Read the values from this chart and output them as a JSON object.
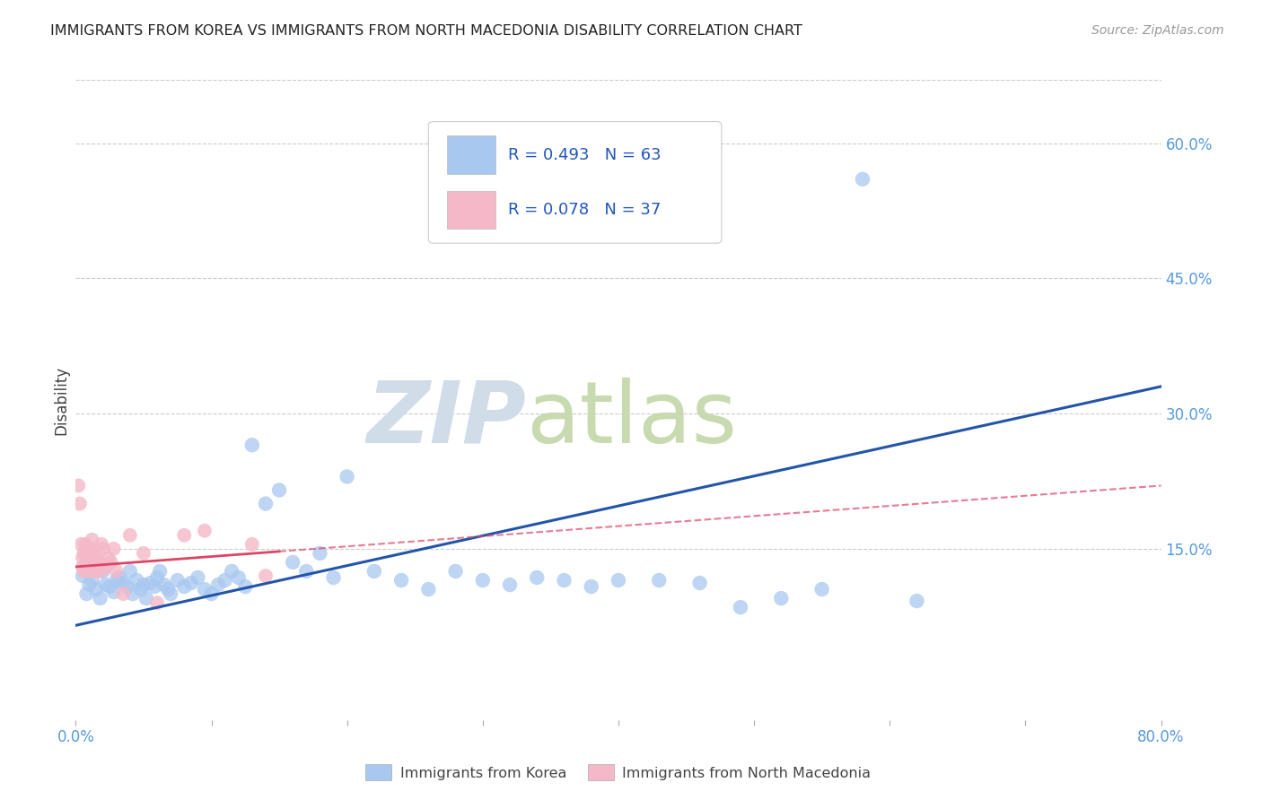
{
  "title": "IMMIGRANTS FROM KOREA VS IMMIGRANTS FROM NORTH MACEDONIA DISABILITY CORRELATION CHART",
  "source": "Source: ZipAtlas.com",
  "ylabel": "Disability",
  "xlim": [
    0.0,
    0.8
  ],
  "ylim": [
    -0.04,
    0.67
  ],
  "korea_color": "#a8c8f0",
  "nmacedonia_color": "#f5b8c8",
  "korea_line_color": "#2255aa",
  "nmacedonia_line_color": "#dd4466",
  "grid_color": "#cccccc",
  "tick_color": "#5599dd",
  "yticks": [
    0.15,
    0.3,
    0.45,
    0.6
  ],
  "ytick_labels": [
    "15.0%",
    "30.0%",
    "45.0%",
    "60.0%"
  ],
  "xtick_labels": [
    "0.0%",
    "80.0%"
  ],
  "xtick_positions": [
    0.0,
    0.8
  ],
  "legend_box_color": "#ffffff",
  "legend_border_color": "#cccccc",
  "watermark_zip_color": "#d0dce8",
  "watermark_atlas_color": "#c8dab0",
  "korea_scatter_x": [
    0.005,
    0.008,
    0.01,
    0.012,
    0.015,
    0.018,
    0.02,
    0.022,
    0.025,
    0.028,
    0.03,
    0.032,
    0.035,
    0.038,
    0.04,
    0.042,
    0.045,
    0.048,
    0.05,
    0.052,
    0.055,
    0.058,
    0.06,
    0.062,
    0.065,
    0.068,
    0.07,
    0.075,
    0.08,
    0.085,
    0.09,
    0.095,
    0.1,
    0.105,
    0.11,
    0.115,
    0.12,
    0.125,
    0.13,
    0.14,
    0.15,
    0.16,
    0.17,
    0.18,
    0.19,
    0.2,
    0.22,
    0.24,
    0.26,
    0.28,
    0.3,
    0.32,
    0.34,
    0.36,
    0.38,
    0.4,
    0.43,
    0.46,
    0.49,
    0.52,
    0.55,
    0.58,
    0.62
  ],
  "korea_scatter_y": [
    0.12,
    0.1,
    0.11,
    0.115,
    0.105,
    0.095,
    0.125,
    0.11,
    0.108,
    0.102,
    0.115,
    0.118,
    0.112,
    0.108,
    0.125,
    0.1,
    0.115,
    0.105,
    0.11,
    0.095,
    0.112,
    0.108,
    0.118,
    0.125,
    0.11,
    0.105,
    0.1,
    0.115,
    0.108,
    0.112,
    0.118,
    0.105,
    0.1,
    0.11,
    0.115,
    0.125,
    0.118,
    0.108,
    0.265,
    0.2,
    0.215,
    0.135,
    0.125,
    0.145,
    0.118,
    0.23,
    0.125,
    0.115,
    0.105,
    0.125,
    0.115,
    0.11,
    0.118,
    0.115,
    0.108,
    0.115,
    0.115,
    0.112,
    0.085,
    0.095,
    0.105,
    0.56,
    0.092
  ],
  "nmacedonia_scatter_x": [
    0.002,
    0.003,
    0.004,
    0.005,
    0.005,
    0.006,
    0.006,
    0.007,
    0.008,
    0.008,
    0.009,
    0.01,
    0.01,
    0.011,
    0.012,
    0.012,
    0.013,
    0.014,
    0.015,
    0.016,
    0.017,
    0.018,
    0.019,
    0.02,
    0.022,
    0.024,
    0.026,
    0.028,
    0.03,
    0.035,
    0.04,
    0.05,
    0.06,
    0.08,
    0.095,
    0.13,
    0.14
  ],
  "nmacedonia_scatter_y": [
    0.22,
    0.2,
    0.155,
    0.14,
    0.13,
    0.145,
    0.125,
    0.155,
    0.14,
    0.13,
    0.145,
    0.135,
    0.125,
    0.15,
    0.16,
    0.13,
    0.145,
    0.135,
    0.125,
    0.14,
    0.135,
    0.125,
    0.155,
    0.15,
    0.13,
    0.14,
    0.135,
    0.15,
    0.125,
    0.1,
    0.165,
    0.145,
    0.09,
    0.165,
    0.17,
    0.155,
    0.12
  ],
  "korea_line_x0": 0.0,
  "korea_line_y0": 0.065,
  "korea_line_x1": 0.8,
  "korea_line_y1": 0.33,
  "nmac_line_x0": 0.0,
  "nmac_line_y0": 0.13,
  "nmac_line_x1": 0.8,
  "nmac_line_y1": 0.22
}
